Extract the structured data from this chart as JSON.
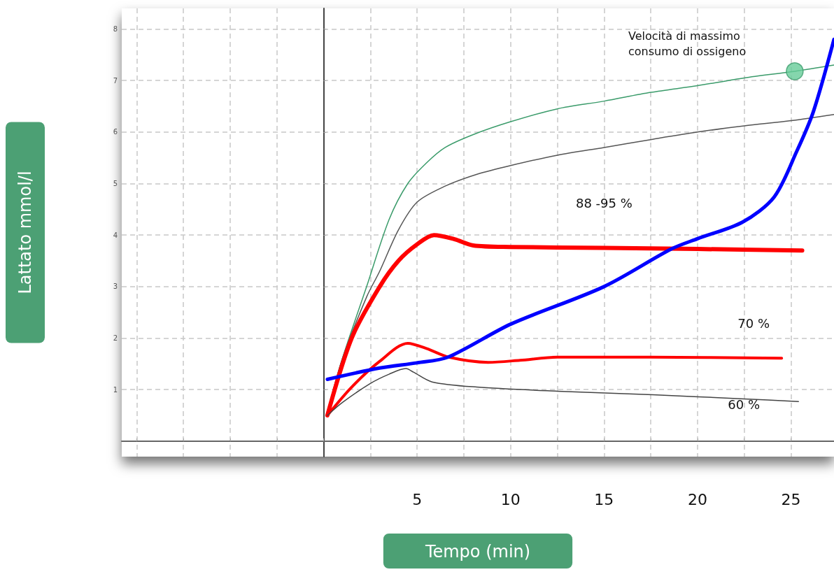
{
  "chart_data": {
    "type": "line",
    "xlabel": "Tempo (min)",
    "ylabel": "Lattato mmol/l",
    "line_style": "solid",
    "grid": true,
    "legend": false,
    "xlim": [
      -10.8,
      27.3
    ],
    "ylim": [
      -0.3,
      8.4
    ],
    "xticks": [
      {
        "value": -10,
        "label": null
      },
      {
        "value": -7.5,
        "label": null
      },
      {
        "value": -5,
        "label": null
      },
      {
        "value": -2.5,
        "label": null
      },
      {
        "value": 0,
        "label": null
      },
      {
        "value": 2.5,
        "label": null
      },
      5,
      {
        "value": 7.5,
        "label": null
      },
      10,
      {
        "value": 12.5,
        "label": null
      },
      15,
      {
        "value": 17.5,
        "label": null
      },
      20,
      {
        "value": 22.5,
        "label": null
      },
      25
    ],
    "yticks": [
      1,
      2,
      3,
      4,
      5,
      6,
      7,
      8
    ],
    "series": [
      {
        "color": "#3a9b6a",
        "x": [
          0.2,
          1,
          2.3,
          3.5,
          4.5,
          5.5,
          6.5,
          8,
          10,
          12.5,
          15,
          17.5,
          20,
          22.5,
          25.2,
          27.3
        ],
        "values": [
          0.55,
          1.6,
          3,
          4.3,
          5,
          5.4,
          5.7,
          5.95,
          6.2,
          6.45,
          6.6,
          6.77,
          6.9,
          7.05,
          7.18,
          7.3
        ]
      },
      {
        "color": "#555555",
        "x": [
          0.2,
          1,
          2.3,
          3,
          4,
          5,
          6.5,
          8.2,
          10,
          12.5,
          15,
          17.6,
          20,
          22.5,
          25,
          27.3
        ],
        "values": [
          0.55,
          1.6,
          2.8,
          3.3,
          4.1,
          4.64,
          4.95,
          5.18,
          5.35,
          5.55,
          5.7,
          5.86,
          6,
          6.12,
          6.22,
          6.34
        ]
      },
      {
        "name": "88 -95 %",
        "color": "#ff0000",
        "x": [
          0.2,
          1.5,
          3,
          4,
          5,
          5.9,
          7,
          8,
          10,
          15,
          20,
          25.6
        ],
        "values": [
          0.5,
          2,
          3,
          3.5,
          3.82,
          4,
          3.92,
          3.8,
          3.77,
          3.75,
          3.73,
          3.7
        ]
      },
      {
        "name": "70 %",
        "color": "#ff0000",
        "x": [
          0.2,
          1.5,
          3,
          4.5,
          5.5,
          6.7,
          8.8,
          10.5,
          12.5,
          17.5,
          24.5
        ],
        "values": [
          0.5,
          1.05,
          1.55,
          1.9,
          1.8,
          1.63,
          1.53,
          1.57,
          1.63,
          1.63,
          1.61
        ]
      },
      {
        "name": "60 %",
        "color": "#444444",
        "x": [
          0.2,
          1,
          2.5,
          3.5,
          4.4,
          4.8,
          5.8,
          8.2,
          12.5,
          17.6,
          22.5,
          25.4
        ],
        "values": [
          0.5,
          0.75,
          1.12,
          1.3,
          1.41,
          1.34,
          1.15,
          1.05,
          0.97,
          0.9,
          0.82,
          0.77
        ]
      },
      {
        "color": "#0000ff",
        "x": [
          0.2,
          3,
          5,
          6.65,
          10,
          15,
          18.6,
          20,
          22.4,
          24.1,
          25.3,
          26.2,
          27.3
        ],
        "values": [
          1.2,
          1.42,
          1.52,
          1.63,
          2.27,
          3,
          3.73,
          3.93,
          4.25,
          4.74,
          5.62,
          6.4,
          7.8
        ]
      },
      {
        "type": "scatter",
        "marker": "circle",
        "color": "#66cc99",
        "x": [
          25.2
        ],
        "values": [
          7.18
        ]
      }
    ],
    "annotations": [
      "Velocità di massimo\nconsumo di ossigeno"
    ]
  }
}
